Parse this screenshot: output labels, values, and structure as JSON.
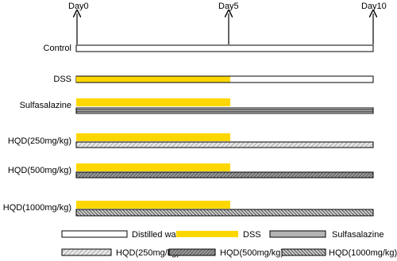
{
  "timeline": {
    "days": [
      "Day0",
      "Day5",
      "Day10"
    ]
  },
  "groups": [
    {
      "label": "Control"
    },
    {
      "label": "DSS"
    },
    {
      "label": "Sulfasalazine"
    },
    {
      "label": "HQD(250mg/kg)"
    },
    {
      "label": "HQD(500mg/kg)"
    },
    {
      "label": "HQD(1000mg/kg)"
    }
  ],
  "legend": [
    {
      "label": "Distilled water"
    },
    {
      "label": "DSS"
    },
    {
      "label": "Sulfasalazine"
    },
    {
      "label": "HQD(250mg/kg)"
    },
    {
      "label": "HQD(500mg/kg)"
    },
    {
      "label": "HQD(1000mg/kg)"
    }
  ]
}
